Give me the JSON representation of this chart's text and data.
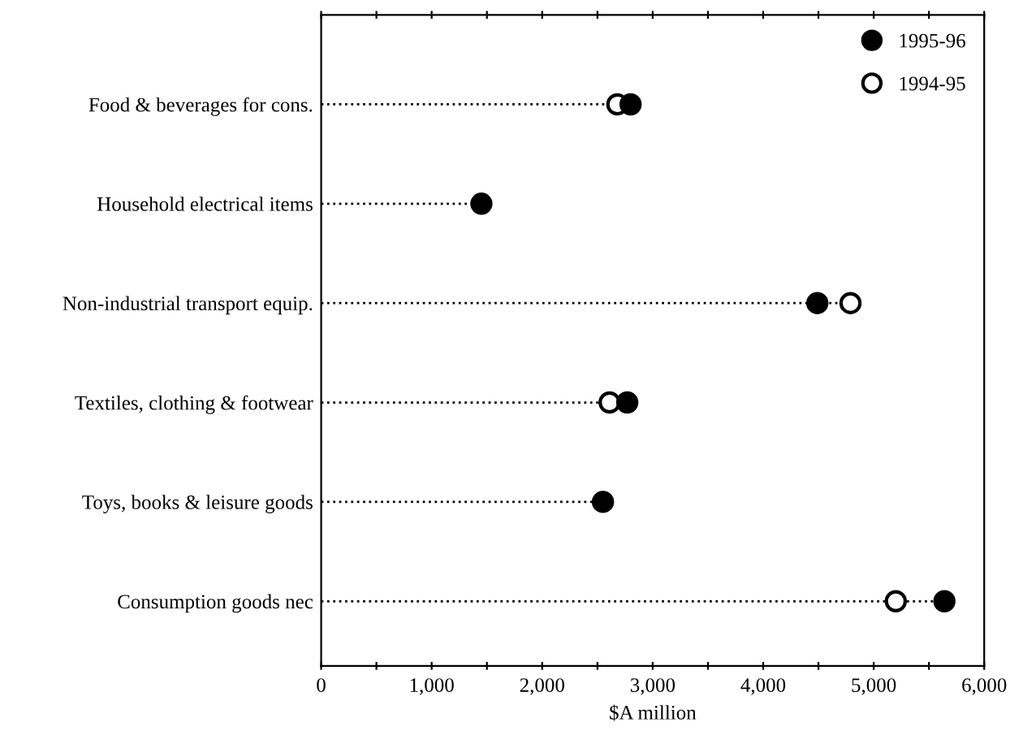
{
  "chart_data": {
    "type": "scatter",
    "orientation": "horizontal",
    "xlabel": "$A million",
    "categories": [
      "Food & beverages for cons.",
      "Household electrical items",
      "Non-industrial transport equip.",
      "Textiles, clothing & footwear",
      "Toys, books & leisure goods",
      "Consumption goods nec"
    ],
    "series": [
      {
        "name": "1995-96",
        "color": "#000000",
        "marker": "circle",
        "values": [
          2800,
          1450,
          4490,
          2770,
          2550,
          5640
        ]
      },
      {
        "name": "1994-95",
        "color": "#ffffff",
        "marker": "circle",
        "values": [
          2680,
          null,
          4790,
          2610,
          null,
          5200
        ]
      }
    ],
    "line_style": "dotted",
    "xlim": [
      0,
      6000
    ],
    "xticks": [
      0,
      {
        "value": 500,
        "label": null
      },
      {
        "value": 1000,
        "label": "1,000"
      },
      {
        "value": 1500,
        "label": null
      },
      {
        "value": 2000,
        "label": "2,000"
      },
      {
        "value": 2500,
        "label": null
      },
      {
        "value": 3000,
        "label": "3,000"
      },
      {
        "value": 3500,
        "label": null
      },
      {
        "value": 4000,
        "label": "4,000"
      },
      {
        "value": 4500,
        "label": null
      },
      {
        "value": 5000,
        "label": "5,000"
      },
      {
        "value": 5500,
        "label": null
      },
      {
        "value": 6000,
        "label": "6,000"
      }
    ],
    "legend": "top right",
    "grid": false
  }
}
